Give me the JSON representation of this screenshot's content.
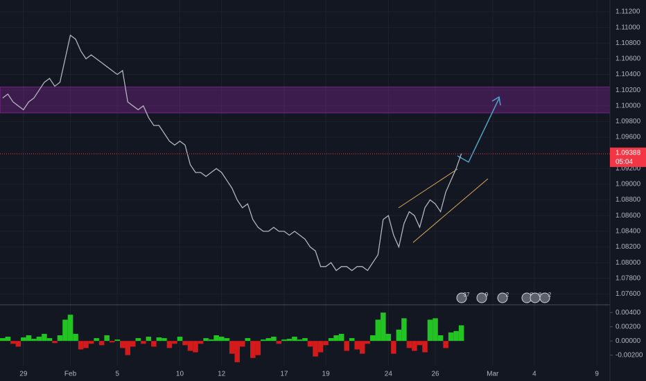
{
  "chart_data": [
    {
      "type": "line",
      "color": "#b2b5be",
      "categories": [
        null,
        null,
        null,
        null,
        "29",
        null,
        null,
        null,
        null,
        null,
        null,
        null,
        null,
        "Feb",
        null,
        null,
        null,
        null,
        null,
        null,
        null,
        null,
        "5",
        null,
        null,
        null,
        null,
        null,
        null,
        null,
        null,
        null,
        null,
        null,
        "10",
        null,
        null,
        null,
        null,
        null,
        null,
        null,
        "12",
        null,
        null,
        null,
        null,
        null,
        null,
        null,
        null,
        null,
        null,
        null,
        "17",
        null,
        null,
        null,
        null,
        null,
        null,
        null,
        "19",
        null,
        null,
        null,
        null,
        null,
        null,
        null,
        null,
        null,
        null,
        null,
        "24",
        null,
        null,
        null,
        null,
        null,
        null,
        null,
        null,
        "26",
        null,
        null,
        null,
        null,
        null,
        null,
        null,
        null,
        null,
        null,
        "Mar",
        null,
        null,
        null,
        null,
        null,
        null,
        null,
        "4",
        null,
        null,
        null,
        null,
        null,
        null,
        null,
        null,
        null,
        null,
        null,
        "9",
        null,
        null
      ],
      "values": [
        1.101,
        1.1015,
        1.1005,
        1.1,
        1.0995,
        1.1005,
        1.101,
        1.102,
        1.103,
        1.1035,
        1.1025,
        1.103,
        1.106,
        1.109,
        1.1085,
        1.107,
        1.106,
        1.1065,
        1.106,
        1.1055,
        1.105,
        1.1045,
        1.104,
        1.1045,
        1.1005,
        1.1,
        1.0995,
        1.1,
        1.0985,
        1.0975,
        1.0975,
        1.0965,
        1.0955,
        1.095,
        1.0955,
        1.095,
        1.0925,
        1.0915,
        1.0915,
        1.091,
        1.0915,
        1.092,
        1.0915,
        1.0905,
        1.0895,
        1.088,
        1.087,
        1.0875,
        1.0855,
        1.0845,
        1.084,
        1.084,
        1.0845,
        1.084,
        1.084,
        1.0835,
        1.084,
        1.0835,
        1.083,
        1.082,
        1.0815,
        1.0795,
        1.0795,
        1.08,
        1.079,
        1.0795,
        1.0795,
        1.079,
        1.0795,
        1.0795,
        1.079,
        1.08,
        1.081,
        1.0855,
        1.086,
        1.0835,
        1.082,
        1.085,
        1.0865,
        1.086,
        1.0845,
        1.087,
        1.088,
        1.0875,
        1.0865,
        1.089,
        1.0905,
        1.092,
        1.0939,
        null,
        null,
        null,
        null,
        null,
        null,
        null,
        null,
        null,
        null,
        null,
        null,
        null,
        null,
        null,
        null,
        null,
        null,
        null,
        null,
        null,
        null,
        null,
        null,
        null,
        null,
        null,
        null
      ],
      "ylim": [
        1.0748,
        1.1135
      ],
      "yticks": [
        {
          "value": 1.112,
          "label": "1.11200"
        },
        {
          "value": 1.11,
          "label": "1.11000"
        },
        {
          "value": 1.108,
          "label": "1.10800"
        },
        {
          "value": 1.106,
          "label": "1.10600"
        },
        {
          "value": 1.104,
          "label": "1.10400"
        },
        {
          "value": 1.102,
          "label": "1.10200"
        },
        {
          "value": 1.1,
          "label": "1.10000"
        },
        {
          "value": 1.098,
          "label": "1.09800"
        },
        {
          "value": 1.096,
          "label": "1.09600"
        },
        {
          "value": 1.092,
          "label": "1.09200"
        },
        {
          "value": 1.09,
          "label": "1.09000"
        },
        {
          "value": 1.088,
          "label": "1.08800"
        },
        {
          "value": 1.086,
          "label": "1.08600"
        },
        {
          "value": 1.084,
          "label": "1.08400"
        },
        {
          "value": 1.082,
          "label": "1.08200"
        },
        {
          "value": 1.08,
          "label": "1.08000"
        },
        {
          "value": 1.078,
          "label": "1.07800"
        },
        {
          "value": 1.076,
          "label": "1.07600"
        }
      ],
      "grid": true,
      "zone": [
        1.0991,
        1.1024
      ],
      "zone_color": "#9c27b0",
      "last_price": {
        "value": 1.09388,
        "label": "1.09388"
      },
      "countdown": "05:04",
      "last_price_color": "#f23645",
      "events": [
        "37",
        "9",
        "2",
        "8",
        "8",
        "2"
      ]
    },
    {
      "type": "bar",
      "positive_color": "#22c322",
      "negative_color": "#d41a1a",
      "values": [
        0.0004,
        0.0006,
        -0.0004,
        -0.0008,
        0.0005,
        0.0008,
        0.0003,
        0.0006,
        0.001,
        0.0004,
        -0.0003,
        0.0008,
        0.003,
        0.0037,
        0.001,
        -0.0012,
        -0.001,
        -0.0004,
        0.0004,
        -0.0006,
        0.0008,
        -0.0002,
        0.0002,
        -0.001,
        -0.002,
        -0.0008,
        0.0004,
        -0.0004,
        0.0006,
        -0.0008,
        0.0005,
        0.0004,
        -0.001,
        -0.0004,
        0.0006,
        -0.0006,
        -0.0014,
        -0.0016,
        -0.0004,
        0.0004,
        0.0002,
        0.0008,
        0.0006,
        0.0004,
        -0.0018,
        -0.003,
        -0.0008,
        0.0004,
        -0.0024,
        -0.002,
        0.0002,
        0.0004,
        0.0006,
        -0.0004,
        0.0002,
        0.0003,
        0.0006,
        0.0002,
        0.0004,
        -0.0008,
        -0.0022,
        -0.0016,
        -0.0006,
        0.0004,
        0.0008,
        0.001,
        -0.0014,
        0.0004,
        -0.0012,
        -0.0018,
        -0.0004,
        0.0008,
        0.003,
        0.004,
        0.001,
        -0.0018,
        0.0016,
        0.0032,
        -0.001,
        -0.0014,
        -0.0006,
        -0.0016,
        0.003,
        0.0032,
        0.0008,
        -0.001,
        0.0012,
        0.0014,
        0.0022,
        null,
        null,
        null,
        null,
        null,
        null,
        null,
        null,
        null,
        null,
        null,
        null,
        null,
        null,
        null,
        null,
        null,
        null,
        null,
        null,
        null,
        null,
        null,
        null,
        null,
        null,
        null,
        null
      ],
      "ylim": [
        -0.0035,
        0.005
      ],
      "yticks": [
        {
          "value": 0.004,
          "label": "0.00400"
        },
        {
          "value": 0.002,
          "label": "0.00200"
        },
        {
          "value": 0,
          "label": "0.00000"
        },
        {
          "value": -0.002,
          "label": "-0.00200"
        }
      ]
    }
  ]
}
